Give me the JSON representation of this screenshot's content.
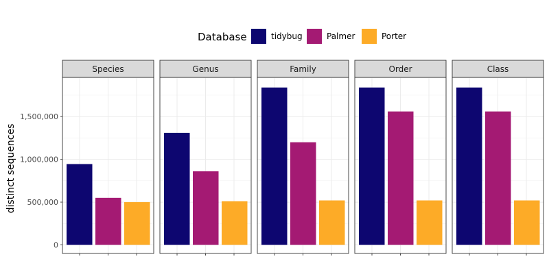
{
  "chart_data": {
    "type": "bar",
    "ylabel": "distinct sequences",
    "xlabel": "",
    "ylim": [
      0,
      1950000
    ],
    "y_ticks": [
      0,
      500000,
      1000000,
      1500000
    ],
    "y_tick_labels": [
      "0",
      "500,000",
      "1,000,000",
      "1,500,000"
    ],
    "grid": true,
    "legend": {
      "title": "Database",
      "position": "top",
      "entries": [
        {
          "name": "tidybug",
          "color": "#0d0670"
        },
        {
          "name": "Palmer",
          "color": "#a41a73"
        },
        {
          "name": "Porter",
          "color": "#fdab27"
        }
      ]
    },
    "facets": [
      "Species",
      "Genus",
      "Family",
      "Order",
      "Class"
    ],
    "series": [
      {
        "name": "tidybug",
        "color": "#0d0670",
        "values": [
          945000,
          1310000,
          1840000,
          1840000,
          1840000
        ]
      },
      {
        "name": "Palmer",
        "color": "#a41a73",
        "values": [
          550000,
          860000,
          1200000,
          1560000,
          1560000
        ]
      },
      {
        "name": "Porter",
        "color": "#fdab27",
        "values": [
          500000,
          510000,
          520000,
          520000,
          520000
        ]
      }
    ]
  }
}
